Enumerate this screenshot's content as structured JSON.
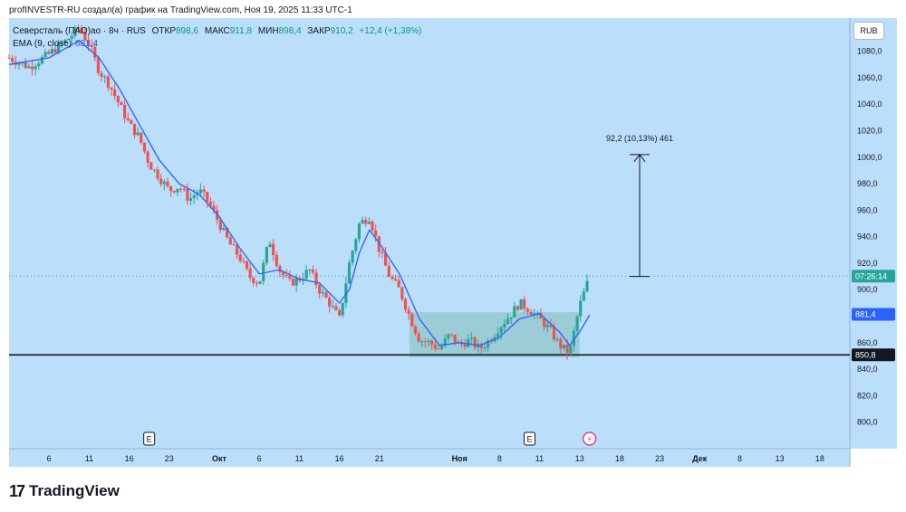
{
  "header": {
    "caption": "profINVESTR-RU создал(а) график на TradingView.com, Ноя 19, 2025 11:33 UTC-1"
  },
  "legend": {
    "symbol": "Северсталь (ПАО)ао · 8ч · RUS",
    "open_label": "ОТКР",
    "open_value": "898,6",
    "high_label": "МАКС",
    "high_value": "911,8",
    "low_label": "МИН",
    "low_value": "898,4",
    "close_label": "ЗАКР",
    "close_value": "910,2",
    "change": "+12,4 (+1,38%)",
    "ema_label": "EMA (9, close)",
    "ema_value": "881,4"
  },
  "currency": "RUB",
  "footer": {
    "logo_mark": "17",
    "logo_text": "TradingView"
  },
  "colors": {
    "background": "#bbdefb",
    "up": "#26a69a",
    "down": "#ef5350",
    "ema": "#2962ff",
    "range_box": "#8fc6c6",
    "support_line": "#131722"
  },
  "chart_data": {
    "type": "candlestick",
    "y_ticks": [
      "800,0",
      "820,0",
      "840,0",
      "860,0",
      "880,0",
      "900,0",
      "920,0",
      "940,0",
      "960,0",
      "980,0",
      "1000,0",
      "1020,0",
      "1040,0",
      "1060,0",
      "1080,0"
    ],
    "ylim": [
      780,
      1105
    ],
    "x_ticks": [
      {
        "label": "6",
        "t": 4
      },
      {
        "label": "11",
        "t": 8
      },
      {
        "label": "16",
        "t": 12
      },
      {
        "label": "23",
        "t": 16
      },
      {
        "label": "Окт",
        "t": 21,
        "bold": true
      },
      {
        "label": "6",
        "t": 25
      },
      {
        "label": "11",
        "t": 29
      },
      {
        "label": "16",
        "t": 33
      },
      {
        "label": "21",
        "t": 37
      },
      {
        "label": "Ноя",
        "t": 45,
        "bold": true
      },
      {
        "label": "8",
        "t": 49
      },
      {
        "label": "11",
        "t": 53
      },
      {
        "label": "13",
        "t": 57
      },
      {
        "label": "18",
        "t": 61
      },
      {
        "label": "23",
        "t": 65
      },
      {
        "label": "Дек",
        "t": 69,
        "bold": true
      },
      {
        "label": "8",
        "t": 73
      },
      {
        "label": "13",
        "t": 77
      },
      {
        "label": "18",
        "t": 81
      }
    ],
    "xlim": [
      0,
      84
    ],
    "price_path": [
      [
        0,
        1075
      ],
      [
        2,
        1068
      ],
      [
        4,
        1078
      ],
      [
        6,
        1090
      ],
      [
        7,
        1098
      ],
      [
        8,
        1085
      ],
      [
        9,
        1065
      ],
      [
        10,
        1055
      ],
      [
        11,
        1040
      ],
      [
        12,
        1025
      ],
      [
        13,
        1015
      ],
      [
        14,
        995
      ],
      [
        15,
        985
      ],
      [
        16,
        975
      ],
      [
        17,
        978
      ],
      [
        18,
        968
      ],
      [
        19,
        975
      ],
      [
        20,
        965
      ],
      [
        21,
        950
      ],
      [
        22,
        935
      ],
      [
        23,
        925
      ],
      [
        24,
        910
      ],
      [
        25,
        905
      ],
      [
        26,
        938
      ],
      [
        27,
        915
      ],
      [
        28,
        905
      ],
      [
        29,
        908
      ],
      [
        30,
        915
      ],
      [
        31,
        900
      ],
      [
        32,
        890
      ],
      [
        33,
        878
      ],
      [
        34,
        920
      ],
      [
        35,
        950
      ],
      [
        36,
        955
      ],
      [
        37,
        930
      ],
      [
        38,
        910
      ],
      [
        39,
        900
      ],
      [
        40,
        880
      ],
      [
        41,
        862
      ],
      [
        42,
        860
      ],
      [
        43,
        855
      ],
      [
        44,
        866
      ],
      [
        45,
        858
      ],
      [
        46,
        862
      ],
      [
        47,
        855
      ],
      [
        48,
        862
      ],
      [
        49,
        872
      ],
      [
        50,
        880
      ],
      [
        51,
        890
      ],
      [
        52,
        885
      ],
      [
        53,
        878
      ],
      [
        54,
        870
      ],
      [
        55,
        858
      ],
      [
        56,
        852
      ],
      [
        57,
        888
      ],
      [
        58,
        910
      ]
    ],
    "ema_path": [
      [
        0,
        1070
      ],
      [
        4,
        1075
      ],
      [
        7,
        1088
      ],
      [
        9,
        1075
      ],
      [
        11,
        1052
      ],
      [
        13,
        1025
      ],
      [
        15,
        998
      ],
      [
        17,
        980
      ],
      [
        19,
        972
      ],
      [
        21,
        955
      ],
      [
        23,
        932
      ],
      [
        25,
        912
      ],
      [
        27,
        915
      ],
      [
        29,
        908
      ],
      [
        31,
        905
      ],
      [
        33,
        890
      ],
      [
        34,
        900
      ],
      [
        35,
        928
      ],
      [
        36,
        945
      ],
      [
        37,
        935
      ],
      [
        39,
        912
      ],
      [
        41,
        878
      ],
      [
        43,
        858
      ],
      [
        45,
        860
      ],
      [
        47,
        858
      ],
      [
        49,
        864
      ],
      [
        51,
        878
      ],
      [
        53,
        882
      ],
      [
        55,
        868
      ],
      [
        56,
        858
      ],
      [
        57,
        868
      ],
      [
        58,
        881
      ]
    ],
    "series": [
      {
        "name": "EMA (9, close)",
        "last": 881.4
      }
    ],
    "range_box": {
      "t_start": 40,
      "t_end": 57,
      "y_low": 849,
      "y_high": 883
    },
    "support_level": 850.8,
    "measure": {
      "t": 63,
      "y_from": 910,
      "y_to": 1002,
      "label": "92,2 (10,13%) 461"
    },
    "last_price_line": 910.2,
    "price_tags": [
      {
        "value": 910.2,
        "label": "07:26:14",
        "color": "#26a69a"
      },
      {
        "value": 881.4,
        "label": "881,4",
        "color": "#2962ff"
      },
      {
        "value": 850.8,
        "label": "850,8",
        "color": "#131722"
      }
    ],
    "events": [
      {
        "t": 14,
        "label": "E"
      },
      {
        "t": 52,
        "label": "E"
      },
      {
        "t": 58,
        "label": "⚡"
      }
    ]
  }
}
